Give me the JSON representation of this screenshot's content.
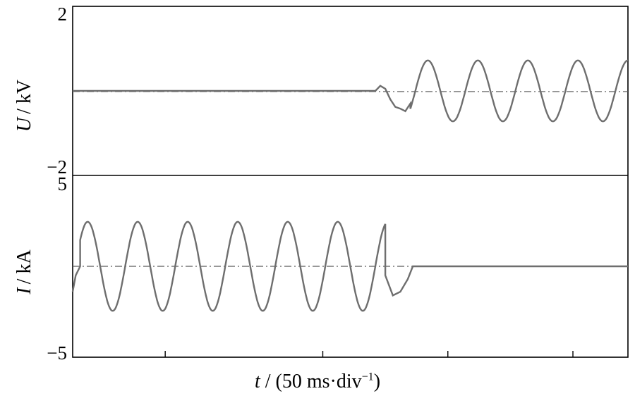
{
  "chart_data": [
    {
      "type": "line",
      "panel": "top",
      "ylabel_var": "U",
      "ylabel_unit": "/ kV",
      "ylim": [
        -2,
        2
      ],
      "ytick_top": "2",
      "ytick_bottom": "−2",
      "zero_line": "dash-dot",
      "series": [
        {
          "segments": [
            {
              "kind": "flat",
              "x_div": [
                0,
                12.1
              ],
              "value": 0
            },
            {
              "kind": "transient",
              "points": [
                [
                  12.1,
                  0
                ],
                [
                  12.3,
                  0.12
                ],
                [
                  12.5,
                  0.05
                ],
                [
                  12.7,
                  -0.2
                ],
                [
                  12.9,
                  -0.38
                ],
                [
                  13.1,
                  -0.42
                ],
                [
                  13.3,
                  -0.48
                ],
                [
                  13.5,
                  -0.3
                ]
              ]
            },
            {
              "kind": "sine",
              "x_div": [
                13.5,
                22.2
              ],
              "amplitude": 0.72,
              "period_div": 2.0,
              "peak_at_div": 14.2
            }
          ]
        }
      ]
    },
    {
      "type": "line",
      "panel": "bottom",
      "ylabel_var": "I",
      "ylabel_unit": "/ kA",
      "ylim": [
        -5,
        5
      ],
      "ytick_top": "5",
      "ytick_bottom": "−5",
      "zero_line": "dash-dot",
      "series": [
        {
          "segments": [
            {
              "kind": "transient",
              "points": [
                [
                  0,
                  -1.4
                ],
                [
                  0.12,
                  -0.5
                ],
                [
                  0.3,
                  0
                ]
              ]
            },
            {
              "kind": "sine",
              "x_div": [
                0.3,
                12.5
              ],
              "amplitude": 2.45,
              "period_div": 2.0,
              "peak_at_div": 0.6
            },
            {
              "kind": "transient",
              "points": [
                [
                  12.5,
                  -0.5
                ],
                [
                  12.8,
                  -1.6
                ],
                [
                  13.1,
                  -1.4
                ],
                [
                  13.4,
                  -0.7
                ],
                [
                  13.6,
                  0
                ]
              ]
            },
            {
              "kind": "flat",
              "x_div": [
                13.6,
                22.2
              ],
              "value": 0
            }
          ]
        }
      ]
    }
  ],
  "xlabel_var": "t",
  "xlabel_unit": "/ (50 ms·div",
  "xlabel_exp": "−1",
  "xlabel_close": ")",
  "x_divisions_total": 22.2,
  "x_major_ticks_div": [
    3.7,
    10,
    15,
    20
  ],
  "colors": {
    "trace": "#6e6e6e",
    "axes": "#000000",
    "zero": "#5a5a5a"
  }
}
